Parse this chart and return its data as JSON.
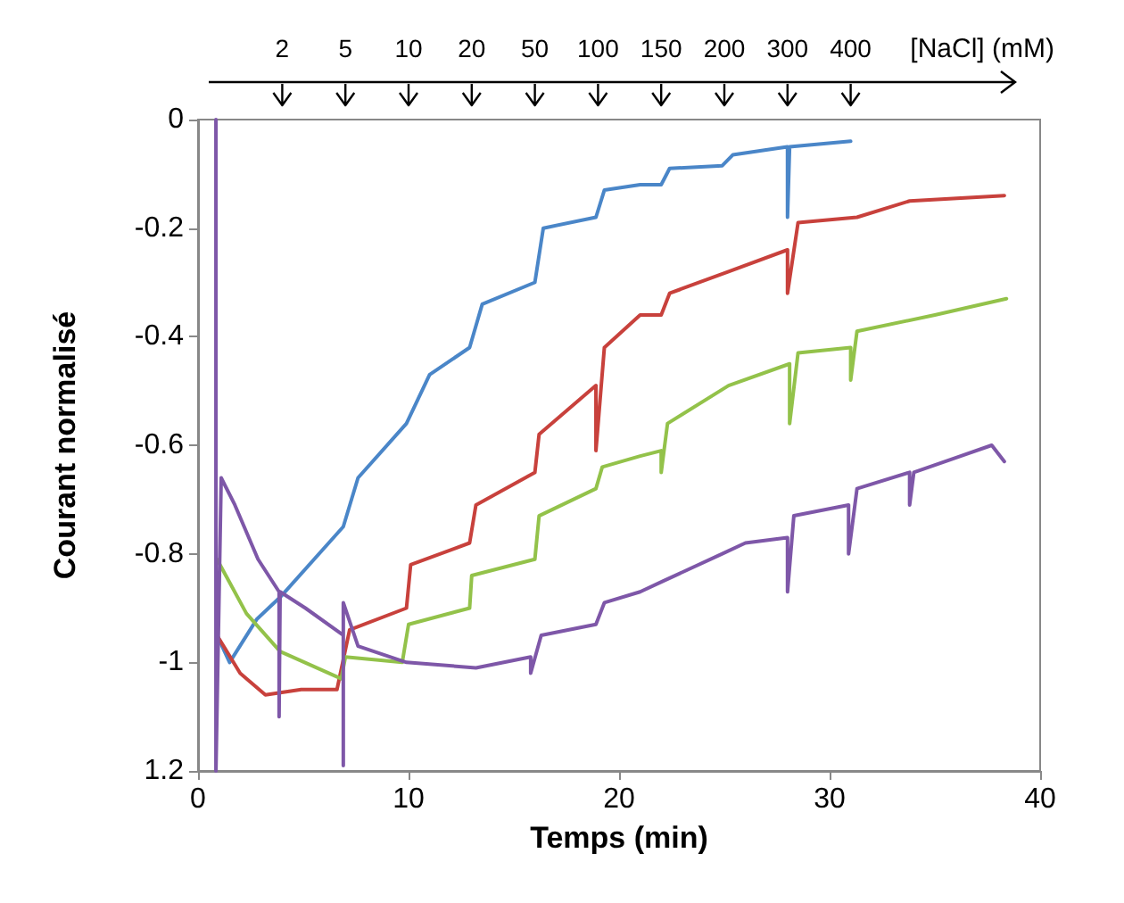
{
  "chart_data": {
    "type": "line",
    "xlabel": "Temps (min)",
    "ylabel": "Courant normalisé",
    "xlim": [
      0,
      40
    ],
    "xticks": [
      0,
      10,
      20,
      30,
      40
    ],
    "ylim": [
      -1.2,
      0
    ],
    "yticks": [
      0,
      -0.2,
      -0.4,
      -0.6,
      -0.8,
      -1,
      {
        "value": -1.2,
        "label": "1.2"
      }
    ],
    "annotations": [
      "2",
      "5",
      "10",
      "20",
      "50",
      "100",
      "150",
      "200",
      "300",
      "400",
      "[NaCl] (mM)"
    ],
    "grid": false,
    "series": [
      {
        "color": "#4a86c8",
        "x": [
          0.9,
          1.5,
          2.8,
          3.9,
          6.9,
          7.6,
          9.9,
          11,
          12.9,
          13.5,
          16,
          16.4,
          18.9,
          19.3,
          21,
          22,
          22.4,
          24.9,
          25.4,
          28,
          28,
          28.1,
          31
        ],
        "values": [
          -0.95,
          -1.0,
          -0.92,
          -0.88,
          -0.75,
          -0.66,
          -0.56,
          -0.47,
          -0.42,
          -0.34,
          -0.3,
          -0.2,
          -0.18,
          -0.13,
          -0.12,
          -0.12,
          -0.09,
          -0.085,
          -0.065,
          -0.05,
          -0.18,
          -0.05,
          -0.04
        ]
      },
      {
        "color": "#c8413c",
        "x": [
          0.9,
          2,
          3.2,
          4.9,
          6.6,
          7.2,
          9.9,
          10.1,
          12.9,
          13.2,
          16,
          16.2,
          18.9,
          18.9,
          19.3,
          21,
          22,
          22.4,
          25.2,
          28,
          28,
          28.5,
          31.3,
          33.8,
          38.3
        ],
        "values": [
          -0.95,
          -1.02,
          -1.06,
          -1.05,
          -1.05,
          -0.94,
          -0.9,
          -0.82,
          -0.78,
          -0.71,
          -0.65,
          -0.58,
          -0.49,
          -0.61,
          -0.42,
          -0.36,
          -0.36,
          -0.32,
          -0.28,
          -0.24,
          -0.32,
          -0.19,
          -0.18,
          -0.15,
          -0.14
        ]
      },
      {
        "color": "#93c24a",
        "x": [
          0.9,
          2.3,
          3.9,
          6.8,
          7,
          9.7,
          10,
          12.9,
          13,
          16,
          16.2,
          18.9,
          19.2,
          21,
          22,
          22,
          22.3,
          25.2,
          28.1,
          28.1,
          28.5,
          31,
          31,
          31.3,
          35,
          38.4
        ],
        "values": [
          -0.81,
          -0.91,
          -0.98,
          -1.03,
          -0.99,
          -1.0,
          -0.93,
          -0.9,
          -0.84,
          -0.81,
          -0.73,
          -0.68,
          -0.64,
          -0.62,
          -0.61,
          -0.65,
          -0.56,
          -0.49,
          -0.45,
          -0.56,
          -0.43,
          -0.42,
          -0.48,
          -0.39,
          -0.36,
          -0.33
        ]
      },
      {
        "color": "#7e57a8",
        "x": [
          0.85,
          0.85,
          1.1,
          1.75,
          2.85,
          3.85,
          3.85,
          3.9,
          5.1,
          6.9,
          6.9,
          6.9,
          7.6,
          9.9,
          13.2,
          15.8,
          15.8,
          16.3,
          18.9,
          19.3,
          21,
          22.1,
          24.9,
          26,
          28,
          28,
          28.3,
          30.9,
          30.9,
          31.3,
          33.8,
          33.8,
          34,
          37.7,
          38.3
        ],
        "values": [
          0,
          -1.2,
          -0.66,
          -0.71,
          -0.81,
          -0.87,
          -1.1,
          -0.87,
          -0.9,
          -0.95,
          -1.19,
          -0.89,
          -0.97,
          -1.0,
          -1.01,
          -0.99,
          -1.02,
          -0.95,
          -0.93,
          -0.89,
          -0.87,
          -0.85,
          -0.8,
          -0.78,
          -0.77,
          -0.87,
          -0.73,
          -0.71,
          -0.8,
          -0.68,
          -0.65,
          -0.71,
          -0.65,
          -0.6,
          -0.63
        ]
      }
    ]
  }
}
